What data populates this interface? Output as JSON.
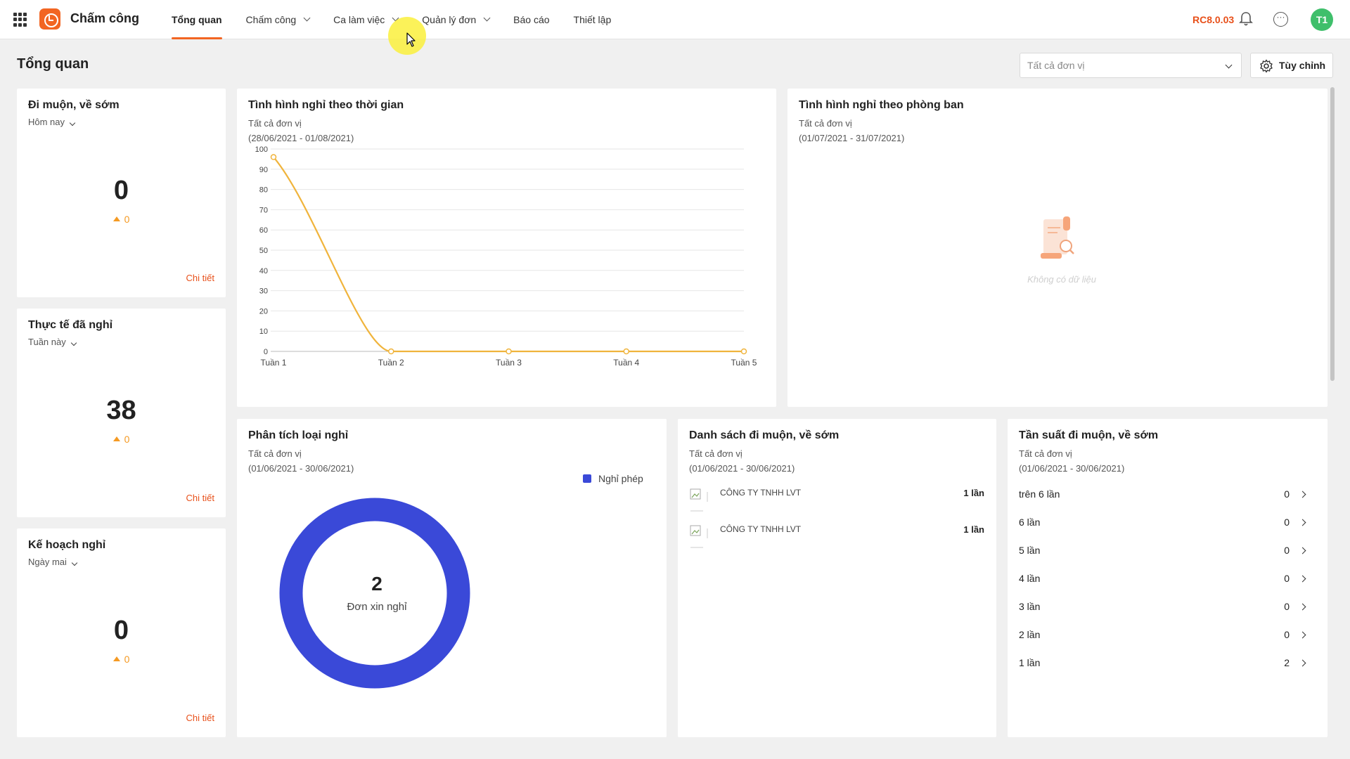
{
  "topbar": {
    "app_name": "Chấm công",
    "nav": [
      {
        "label": "Tổng quan",
        "active": true,
        "dropdown": false
      },
      {
        "label": "Chấm công",
        "active": false,
        "dropdown": true
      },
      {
        "label": "Ca làm việc",
        "active": false,
        "dropdown": true
      },
      {
        "label": "Quản lý đơn",
        "active": false,
        "dropdown": true
      },
      {
        "label": "Báo cáo",
        "active": false,
        "dropdown": false
      },
      {
        "label": "Thiết lập",
        "active": false,
        "dropdown": false
      }
    ],
    "version": "RC8.0.03",
    "avatar_initials": "T1",
    "icons": [
      "apps-grid-icon",
      "bell-icon",
      "more-icon"
    ]
  },
  "page": {
    "title": "Tổng quan",
    "unit_select_placeholder": "Tất cả đơn vị",
    "customize_label": "Tùy chỉnh"
  },
  "stats": [
    {
      "title": "Đi muộn, về sớm",
      "period": "Hôm nay",
      "value": "0",
      "delta": "0",
      "link": "Chi tiết"
    },
    {
      "title": "Thực tế đã nghỉ",
      "period": "Tuần này",
      "value": "38",
      "delta": "0",
      "link": "Chi tiết"
    },
    {
      "title": "Kế hoạch nghỉ",
      "period": "Ngày mai",
      "value": "0",
      "delta": "0",
      "link": "Chi tiết"
    }
  ],
  "leave_over_time": {
    "title": "Tình hình nghỉ theo thời gian",
    "unit": "Tất cả đơn vị",
    "range": "(28/06/2021 - 01/08/2021)"
  },
  "leave_by_department": {
    "title": "Tình hình nghỉ theo phòng ban",
    "unit": "Tất cả đơn vị",
    "range": "(01/07/2021 - 31/07/2021)",
    "empty_text": "Không có dữ liệu"
  },
  "leave_type_analysis": {
    "title": "Phân tích loại nghỉ",
    "unit": "Tất cả đơn vị",
    "range": "(01/06/2021 - 30/06/2021)",
    "legend": "Nghỉ phép",
    "center_value": "2",
    "center_label": "Đơn xin nghỉ"
  },
  "late_list": {
    "title": "Danh sách đi muộn, về sớm",
    "unit": "Tất cả đơn vị",
    "range": "(01/06/2021 - 30/06/2021)",
    "rows": [
      {
        "name": "CÔNG TY TNHH LVT",
        "count": "1 lần"
      },
      {
        "name": "CÔNG TY TNHH LVT",
        "count": "1 lần"
      }
    ]
  },
  "late_frequency": {
    "title": "Tần suất đi muộn, về sớm",
    "unit": "Tất cả đơn vị",
    "range": "(01/06/2021 - 30/06/2021)",
    "rows": [
      {
        "label": "trên 6 lần",
        "value": "0"
      },
      {
        "label": "6 lần",
        "value": "0"
      },
      {
        "label": "5 lần",
        "value": "0"
      },
      {
        "label": "4 lần",
        "value": "0"
      },
      {
        "label": "3 lần",
        "value": "0"
      },
      {
        "label": "2 lần",
        "value": "0"
      },
      {
        "label": "1 lần",
        "value": "2"
      }
    ]
  },
  "colors": {
    "accent": "#f26522",
    "line": "#f0b43c",
    "donut": "#3a49d8",
    "delta": "#f59a23",
    "avatar": "#3fbf6b"
  },
  "chart_data": [
    {
      "type": "line",
      "categories": [
        "Tuần 1",
        "Tuần 2",
        "Tuần 3",
        "Tuần 4",
        "Tuần 5"
      ],
      "series": [
        {
          "values": [
            96,
            0,
            0,
            0,
            0
          ]
        }
      ],
      "ylim": [
        0,
        100
      ],
      "yticks": [
        0,
        10,
        20,
        30,
        40,
        50,
        60,
        70,
        80,
        90,
        100
      ],
      "grid": true
    },
    {
      "type": "pie",
      "categories": [
        "Nghỉ phép"
      ],
      "values": [
        2
      ],
      "donut": true
    }
  ]
}
